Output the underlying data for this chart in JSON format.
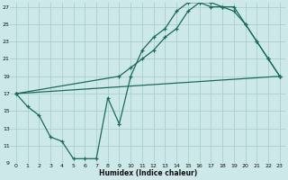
{
  "xlabel": "Humidex (Indice chaleur)",
  "background_color": "#cce8e8",
  "line_color": "#1a6b5a",
  "grid_color": "#aacfcf",
  "xlim": [
    -0.5,
    23.5
  ],
  "ylim": [
    9,
    27.5
  ],
  "xticks": [
    0,
    1,
    2,
    3,
    4,
    5,
    6,
    7,
    8,
    9,
    10,
    11,
    12,
    13,
    14,
    15,
    16,
    17,
    18,
    19,
    20,
    21,
    22,
    23
  ],
  "yticks": [
    9,
    11,
    13,
    15,
    17,
    19,
    21,
    23,
    25,
    27
  ],
  "line1_x": [
    0,
    1,
    2,
    3,
    4,
    5,
    6,
    7,
    8,
    9,
    10,
    11,
    12,
    13,
    14,
    15,
    16,
    17,
    18,
    19,
    20,
    21,
    22,
    23
  ],
  "line1_y": [
    17,
    15.5,
    14.5,
    12,
    11.5,
    9.5,
    9.5,
    9.5,
    16.5,
    13.5,
    19,
    22,
    23.5,
    24.5,
    26.5,
    27.5,
    27.5,
    27,
    27,
    26.5,
    25,
    23,
    21,
    19
  ],
  "line2_x": [
    0,
    9,
    10,
    11,
    12,
    13,
    14,
    15,
    16,
    17,
    18,
    19,
    20,
    21,
    22,
    23
  ],
  "line2_y": [
    17,
    19,
    20,
    21,
    22,
    23.5,
    24.5,
    26.5,
    27.5,
    27.5,
    27,
    27,
    25,
    23,
    21,
    19
  ],
  "line3_x": [
    0,
    23
  ],
  "line3_y": [
    17,
    19
  ]
}
